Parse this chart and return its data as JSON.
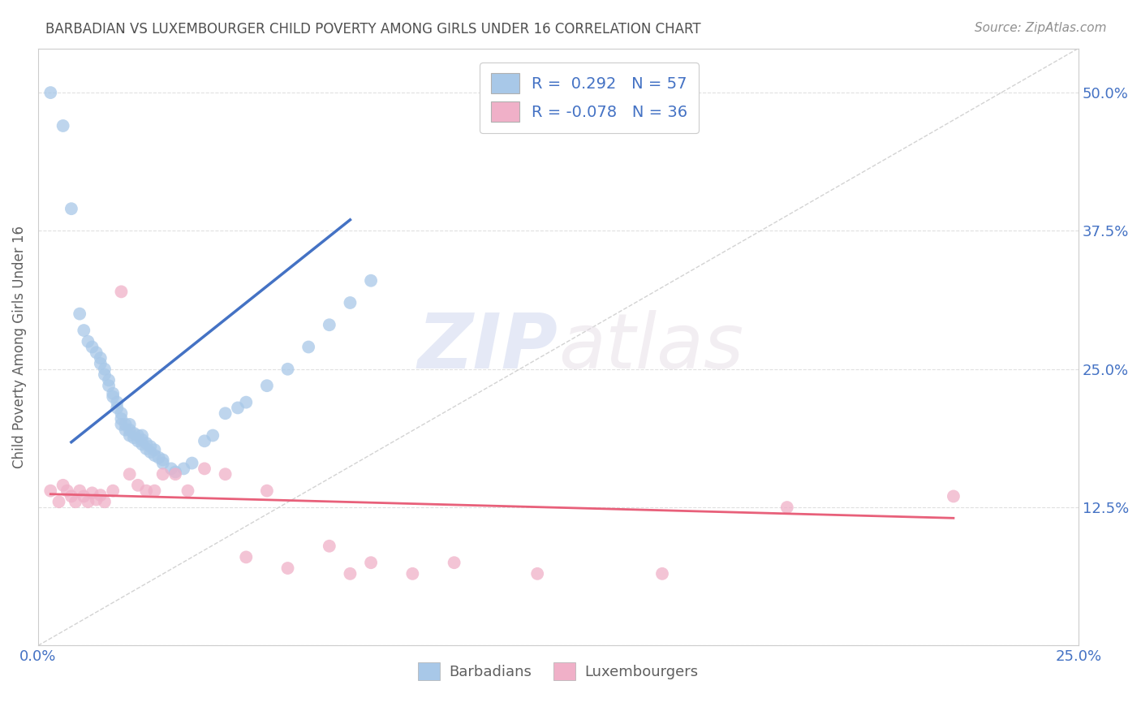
{
  "title": "BARBADIAN VS LUXEMBOURGER CHILD POVERTY AMONG GIRLS UNDER 16 CORRELATION CHART",
  "source": "Source: ZipAtlas.com",
  "ylabel": "Child Poverty Among Girls Under 16",
  "xlim": [
    0.0,
    0.25
  ],
  "ylim": [
    0.0,
    0.54
  ],
  "xticks": [
    0.0,
    0.05,
    0.1,
    0.15,
    0.2,
    0.25
  ],
  "xticklabels": [
    "0.0%",
    "",
    "",
    "",
    "",
    "25.0%"
  ],
  "yticks": [
    0.0,
    0.125,
    0.25,
    0.375,
    0.5
  ],
  "yticklabels": [
    "",
    "12.5%",
    "25.0%",
    "37.5%",
    "50.0%"
  ],
  "barbadian_color": "#a8c8e8",
  "luxembourger_color": "#f0b0c8",
  "barbadian_R": 0.292,
  "barbadian_N": 57,
  "luxembourger_R": -0.078,
  "luxembourger_N": 36,
  "legend_label_1": "Barbadians",
  "legend_label_2": "Luxembourgers",
  "barbadian_x": [
    0.003,
    0.006,
    0.008,
    0.01,
    0.011,
    0.012,
    0.013,
    0.014,
    0.015,
    0.015,
    0.016,
    0.016,
    0.017,
    0.017,
    0.018,
    0.018,
    0.019,
    0.019,
    0.02,
    0.02,
    0.02,
    0.021,
    0.021,
    0.022,
    0.022,
    0.022,
    0.023,
    0.023,
    0.024,
    0.024,
    0.025,
    0.025,
    0.025,
    0.026,
    0.026,
    0.027,
    0.027,
    0.028,
    0.028,
    0.029,
    0.03,
    0.03,
    0.032,
    0.033,
    0.035,
    0.037,
    0.04,
    0.042,
    0.045,
    0.048,
    0.05,
    0.055,
    0.06,
    0.065,
    0.07,
    0.075,
    0.08
  ],
  "barbadian_y": [
    0.5,
    0.47,
    0.395,
    0.3,
    0.285,
    0.275,
    0.27,
    0.265,
    0.255,
    0.26,
    0.245,
    0.25,
    0.235,
    0.24,
    0.225,
    0.228,
    0.215,
    0.22,
    0.2,
    0.205,
    0.21,
    0.195,
    0.2,
    0.19,
    0.195,
    0.2,
    0.188,
    0.192,
    0.185,
    0.19,
    0.182,
    0.186,
    0.19,
    0.178,
    0.183,
    0.175,
    0.18,
    0.172,
    0.177,
    0.17,
    0.165,
    0.168,
    0.16,
    0.157,
    0.16,
    0.165,
    0.185,
    0.19,
    0.21,
    0.215,
    0.22,
    0.235,
    0.25,
    0.27,
    0.29,
    0.31,
    0.33
  ],
  "luxembourger_x": [
    0.003,
    0.005,
    0.006,
    0.007,
    0.008,
    0.009,
    0.01,
    0.011,
    0.012,
    0.013,
    0.014,
    0.015,
    0.016,
    0.018,
    0.02,
    0.022,
    0.024,
    0.026,
    0.028,
    0.03,
    0.033,
    0.036,
    0.04,
    0.045,
    0.05,
    0.055,
    0.06,
    0.07,
    0.075,
    0.08,
    0.09,
    0.1,
    0.12,
    0.15,
    0.18,
    0.22
  ],
  "luxembourger_y": [
    0.14,
    0.13,
    0.145,
    0.14,
    0.135,
    0.13,
    0.14,
    0.135,
    0.13,
    0.138,
    0.132,
    0.136,
    0.13,
    0.14,
    0.32,
    0.155,
    0.145,
    0.14,
    0.14,
    0.155,
    0.155,
    0.14,
    0.16,
    0.155,
    0.08,
    0.14,
    0.07,
    0.09,
    0.065,
    0.075,
    0.065,
    0.075,
    0.065,
    0.065,
    0.125,
    0.135
  ],
  "blue_line_color": "#4472c4",
  "pink_line_color": "#e8607a",
  "diagonal_line_color": "#c8c8c8",
  "title_color": "#505050",
  "source_color": "#909090",
  "tick_color": "#4472c4",
  "grid_color": "#e0e0e0",
  "background_color": "#ffffff",
  "watermark_text": "ZIPatlas",
  "watermark_color": "#e8eaf4"
}
